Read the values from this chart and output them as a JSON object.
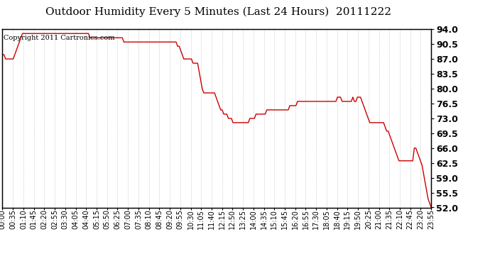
{
  "title": "Outdoor Humidity Every 5 Minutes (Last 24 Hours)  20111222",
  "copyright": "Copyright 2011 Cartronics.com",
  "line_color": "#cc0000",
  "background_color": "#ffffff",
  "plot_bg_color": "#ffffff",
  "grid_color": "#bbbbbb",
  "ylim": [
    52.0,
    94.0
  ],
  "yticks": [
    52.0,
    55.5,
    59.0,
    62.5,
    66.0,
    69.5,
    73.0,
    76.5,
    80.0,
    83.5,
    87.0,
    90.5,
    94.0
  ],
  "x_tick_labels": [
    "00:00",
    "00:35",
    "01:10",
    "01:45",
    "02:20",
    "02:55",
    "03:30",
    "04:05",
    "04:40",
    "05:15",
    "05:50",
    "06:25",
    "07:00",
    "07:35",
    "08:10",
    "08:45",
    "09:20",
    "09:55",
    "10:30",
    "11:05",
    "11:40",
    "12:15",
    "12:50",
    "13:25",
    "14:00",
    "14:35",
    "15:10",
    "15:45",
    "16:20",
    "16:55",
    "17:30",
    "18:05",
    "18:40",
    "19:15",
    "19:50",
    "20:25",
    "21:00",
    "21:35",
    "22:10",
    "22:45",
    "23:20",
    "23:55"
  ],
  "humidity": [
    88,
    88,
    87,
    87,
    87,
    87,
    87,
    87,
    88,
    89,
    90,
    91,
    92,
    93,
    93,
    93,
    93,
    93,
    93,
    93,
    93,
    93,
    93,
    93,
    93,
    93,
    93,
    93,
    93,
    93,
    93,
    93,
    93,
    93,
    93,
    93,
    93,
    93,
    93,
    93,
    93,
    93,
    93,
    93,
    93,
    93,
    93,
    93,
    93,
    93,
    93,
    93,
    93,
    93,
    93,
    93,
    93,
    92,
    92,
    92,
    92,
    92,
    92,
    92,
    92,
    92,
    92,
    92,
    92,
    92,
    92,
    92,
    92,
    92,
    92,
    92,
    92,
    92,
    92,
    91,
    91,
    91,
    91,
    91,
    91,
    91,
    91,
    91,
    91,
    91,
    91,
    91,
    91,
    91,
    91,
    91,
    91,
    91,
    91,
    91,
    91,
    91,
    91,
    91,
    91,
    91,
    91,
    91,
    91,
    91,
    91,
    91,
    91,
    91,
    90,
    90,
    89,
    88,
    87,
    87,
    87,
    87,
    87,
    87,
    86,
    86,
    86,
    86,
    84,
    82,
    80,
    79,
    79,
    79,
    79,
    79,
    79,
    79,
    79,
    78,
    77,
    76,
    75,
    75,
    74,
    74,
    74,
    73,
    73,
    73,
    72,
    72,
    72,
    72,
    72,
    72,
    72,
    72,
    72,
    72,
    72,
    73,
    73,
    73,
    73,
    74,
    74,
    74,
    74,
    74,
    74,
    74,
    75,
    75,
    75,
    75,
    75,
    75,
    75,
    75,
    75,
    75,
    75,
    75,
    75,
    75,
    75,
    76,
    76,
    76,
    76,
    76,
    77,
    77,
    77,
    77,
    77,
    77,
    77,
    77,
    77,
    77,
    77,
    77,
    77,
    77,
    77,
    77,
    77,
    77,
    77,
    77,
    77,
    77,
    77,
    77,
    77,
    77,
    78,
    78,
    78,
    77,
    77,
    77,
    77,
    77,
    77,
    77,
    78,
    77,
    77,
    78,
    78,
    78,
    77,
    76,
    75,
    74,
    73,
    72,
    72,
    72,
    72,
    72,
    72,
    72,
    72,
    72,
    72,
    71,
    70,
    70,
    69,
    68,
    67,
    66,
    65,
    64,
    63,
    63,
    63,
    63,
    63,
    63,
    63,
    63,
    63,
    63,
    66,
    66,
    65,
    64,
    63,
    62,
    60,
    58,
    56,
    54,
    53,
    52
  ],
  "line_width": 1.0,
  "title_fontsize": 11,
  "tick_fontsize": 7,
  "copyright_fontsize": 7,
  "yticklabel_fontsize": 9,
  "yticklabel_fontweight": "bold"
}
